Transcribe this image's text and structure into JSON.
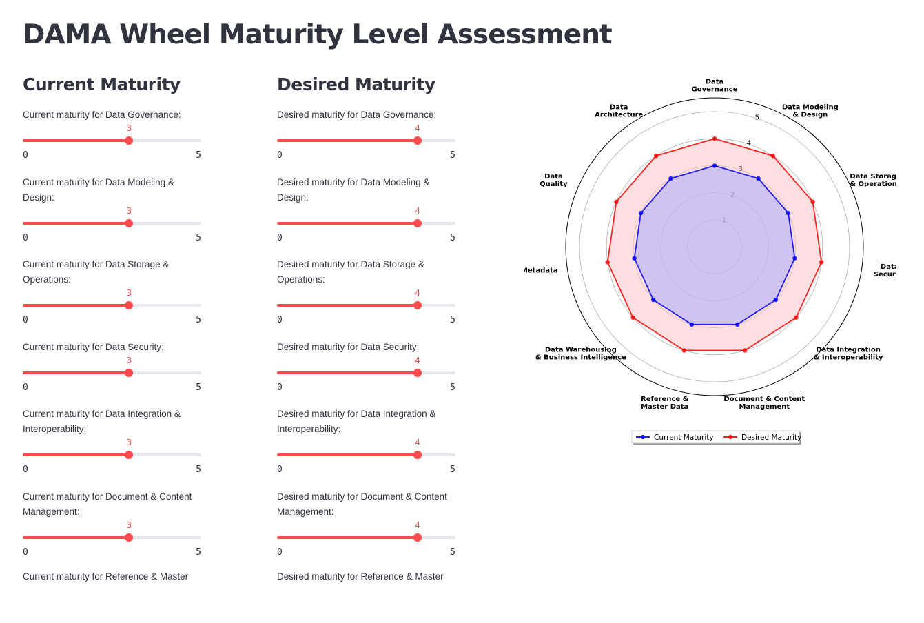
{
  "page": {
    "title": "DAMA Wheel Maturity Level Assessment"
  },
  "current": {
    "header": "Current Maturity",
    "sliders": [
      {
        "label": "Current maturity for Data Governance:",
        "value": 3,
        "min": 0,
        "max": 5
      },
      {
        "label": "Current maturity for Data Modeling & Design:",
        "value": 3,
        "min": 0,
        "max": 5
      },
      {
        "label": "Current maturity for Data Storage & Operations:",
        "value": 3,
        "min": 0,
        "max": 5
      },
      {
        "label": "Current maturity for Data Security:",
        "value": 3,
        "min": 0,
        "max": 5
      },
      {
        "label": "Current maturity for Data Integration & Interoperability:",
        "value": 3,
        "min": 0,
        "max": 5
      },
      {
        "label": "Current maturity for Document & Content Management:",
        "value": 3,
        "min": 0,
        "max": 5
      },
      {
        "label": "Current maturity for Reference & Master",
        "value": null,
        "min": null,
        "max": null
      }
    ]
  },
  "desired": {
    "header": "Desired Maturity",
    "sliders": [
      {
        "label": "Desired maturity for Data Governance:",
        "value": 4,
        "min": 0,
        "max": 5
      },
      {
        "label": "Desired maturity for Data Modeling & Design:",
        "value": 4,
        "min": 0,
        "max": 5
      },
      {
        "label": "Desired maturity for Data Storage & Operations:",
        "value": 4,
        "min": 0,
        "max": 5
      },
      {
        "label": "Desired maturity for Data Security:",
        "value": 4,
        "min": 0,
        "max": 5
      },
      {
        "label": "Desired maturity for Data Integration & Interoperability:",
        "value": 4,
        "min": 0,
        "max": 5
      },
      {
        "label": "Desired maturity for Document & Content Management:",
        "value": 4,
        "min": 0,
        "max": 5
      },
      {
        "label": "Desired maturity for Reference & Master",
        "value": null,
        "min": null,
        "max": null
      }
    ]
  },
  "colors": {
    "accent": "#ff4b4b",
    "current_series": "#0000ff",
    "desired_series": "#ff0000",
    "current_fill": "#b0b0ff",
    "desired_fill": "#ffc0c0"
  },
  "chart_data": {
    "type": "radar",
    "categories": [
      "Data\nGovernance",
      "Data Modeling\n& Design",
      "Data Storage\n& Operations",
      "Data\nSecurity",
      "Data Integration\n& Interoperability",
      "Document & Content\nManagement",
      "Reference &\nMaster Data",
      "Data Warehousing\n& Business Intelligence",
      "Metadata",
      "Data\nQuality",
      "Data\nArchitecture"
    ],
    "series": [
      {
        "name": "Current Maturity",
        "values": [
          3,
          3,
          3,
          3,
          3,
          3,
          3,
          3,
          3,
          3,
          3
        ],
        "color": "#0000ff"
      },
      {
        "name": "Desired Maturity",
        "values": [
          4,
          4,
          4,
          4,
          4,
          4,
          4,
          4,
          4,
          4,
          4
        ],
        "color": "#ff0000"
      }
    ],
    "radial_ticks": [
      1,
      2,
      3,
      4,
      5
    ],
    "rlim": [
      0,
      5
    ],
    "grid": true,
    "legend_position": "bottom-center"
  }
}
